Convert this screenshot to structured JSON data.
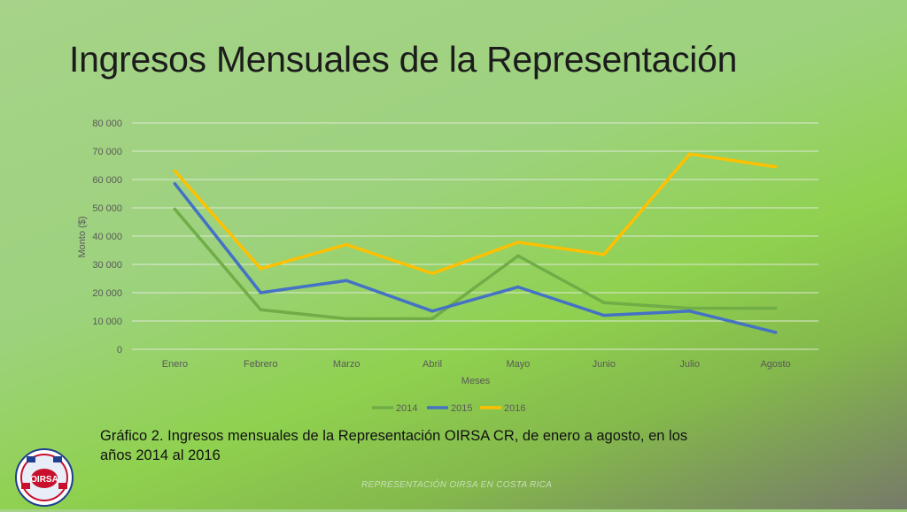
{
  "slide": {
    "title": "Ingresos Mensuales de la Representación",
    "caption": "Gráfico 2. Ingresos mensuales de la Representación OIRSA CR, de enero a agosto, en los años 2014 al 2016",
    "footer": "REPRESENTACIÓN OIRSA EN COSTA RICA",
    "logo_text": "OIRSA"
  },
  "chart_data": {
    "type": "line",
    "title": "",
    "xlabel": "Meses",
    "ylabel": "Monto ($)",
    "categories": [
      "Enero",
      "Febrero",
      "Marzo",
      "Abril",
      "Mayo",
      "Junio",
      "Julio",
      "Agosto"
    ],
    "ylim": [
      0,
      80000
    ],
    "yticks": [
      0,
      10000,
      20000,
      30000,
      40000,
      50000,
      60000,
      70000,
      80000
    ],
    "ytick_labels": [
      "0",
      "10 000",
      "20 000",
      "30 000",
      "40 000",
      "50 000",
      "60 000",
      "70 000",
      "80 000"
    ],
    "grid": true,
    "legend_position": "bottom",
    "series": [
      {
        "name": "2014",
        "color": "#70ad47",
        "values": [
          49500,
          14000,
          10800,
          10800,
          33000,
          16500,
          14500,
          14500
        ]
      },
      {
        "name": "2015",
        "color": "#4472c4",
        "values": [
          58500,
          20000,
          24300,
          13500,
          22000,
          12000,
          13500,
          6000
        ]
      },
      {
        "name": "2016",
        "color": "#ffc000",
        "values": [
          63000,
          28500,
          37000,
          26800,
          37800,
          33500,
          69000,
          64500
        ]
      }
    ]
  }
}
